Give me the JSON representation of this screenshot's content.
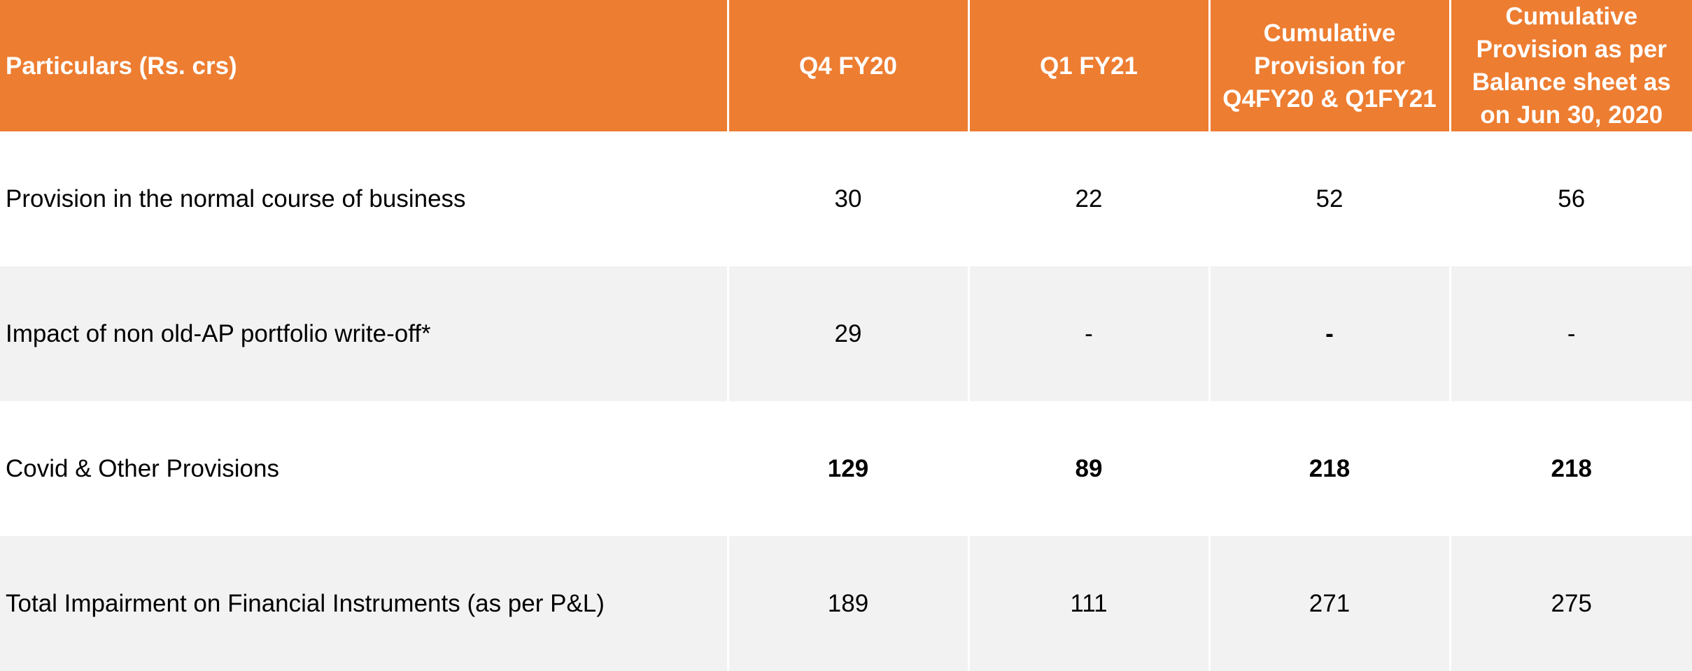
{
  "table": {
    "headers": [
      "Particulars (Rs. crs)",
      "Q4 FY20",
      "Q1 FY21",
      "Cumulative Provision for Q4FY20 & Q1FY21",
      "Cumulative Provision as per Balance sheet as on Jun 30, 2020"
    ],
    "rows": [
      {
        "label": "Provision in the normal course of business",
        "values": [
          "30",
          "22",
          "52",
          "56"
        ]
      },
      {
        "label": "Impact of non old-AP portfolio write-off*",
        "values": [
          "29",
          "-",
          "-",
          "-"
        ]
      },
      {
        "label": "Covid & Other Provisions",
        "values": [
          "129",
          "89",
          "218",
          "218"
        ]
      },
      {
        "label": "Total Impairment on Financial Instruments (as per P&L)",
        "values": [
          "189",
          "111",
          "271",
          "275"
        ]
      }
    ]
  },
  "colors": {
    "header_bg": "#ED7D31",
    "header_text": "#FFFFFF",
    "row_alt_bg": "#F2F2F2",
    "divider_dashed": "#7F7F7F"
  }
}
